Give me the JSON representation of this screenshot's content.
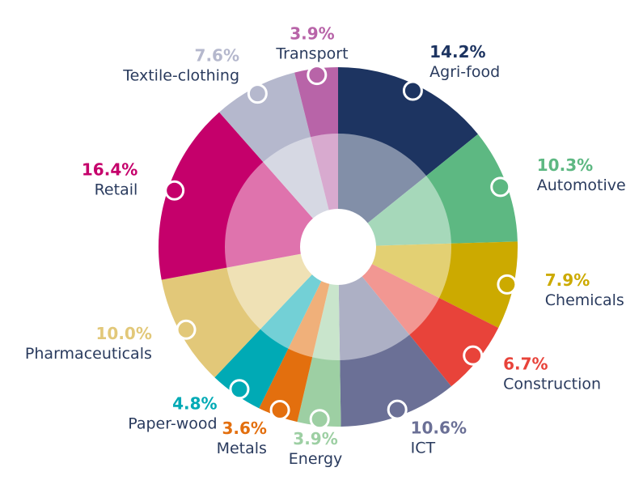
{
  "chart_data": {
    "type": "pie",
    "categories": [
      "Agri-food",
      "Automotive",
      "Chemicals",
      "Construction",
      "ICT",
      "Energy",
      "Metals",
      "Paper-wood",
      "Pharmaceuticals",
      "Retail",
      "Textile-clothing",
      "Transport"
    ],
    "values": [
      14.2,
      10.3,
      7.9,
      6.7,
      10.6,
      3.9,
      3.6,
      4.8,
      10.0,
      16.4,
      7.6,
      3.9
    ],
    "value_labels": [
      "14.2%",
      "10.3%",
      "7.9%",
      "6.7%",
      "10.6%",
      "3.9%",
      "3.6%",
      "4.8%",
      "10.0%",
      "16.4%",
      "7.6%",
      "3.9%"
    ],
    "colors": [
      "#1d3461",
      "#5db882",
      "#ccaa00",
      "#e8433a",
      "#6b7096",
      "#9dcfa3",
      "#e36f0e",
      "#00aab5",
      "#e2c879",
      "#c5006b",
      "#b5b8cd",
      "#b864a8"
    ],
    "label_color": "#2a3b5e"
  }
}
